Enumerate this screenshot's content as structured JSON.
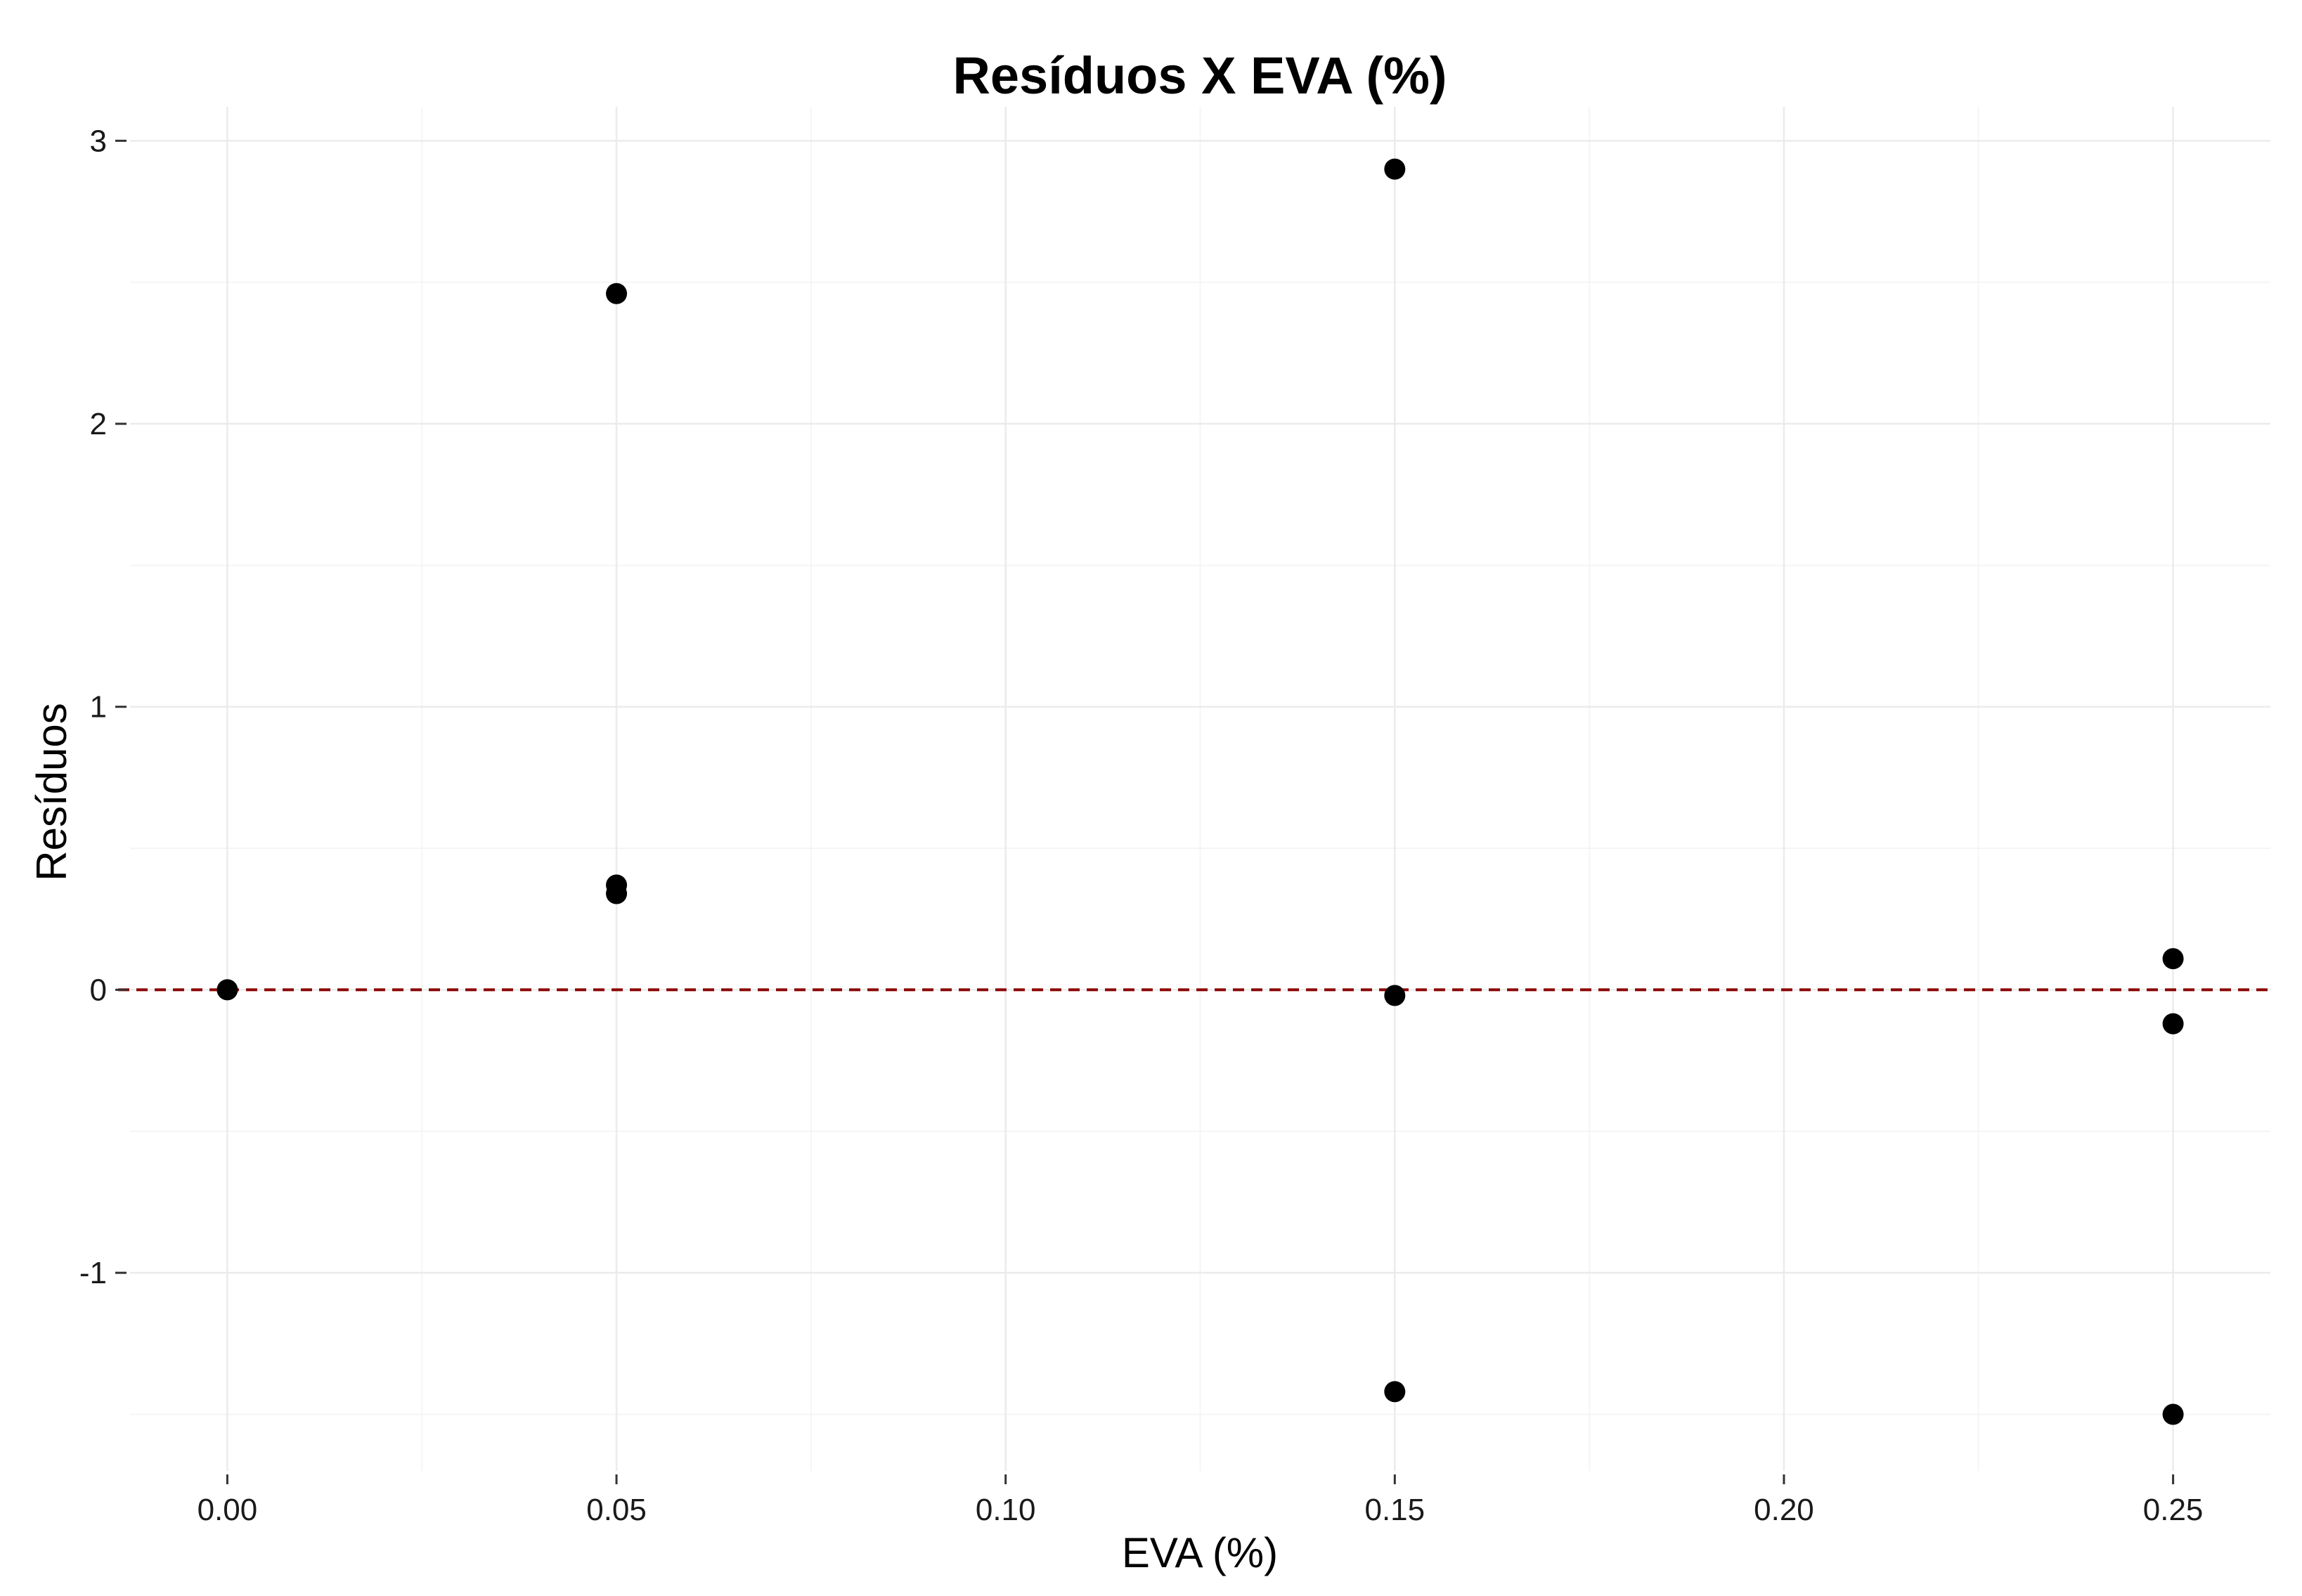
{
  "chart_data": {
    "type": "scatter",
    "title": "Resíduos X EVA (%)",
    "xlabel": "EVA (%)",
    "ylabel": "Resíduos",
    "xlim": [
      -0.0125,
      0.2625
    ],
    "ylim": [
      -1.7,
      3.12
    ],
    "x_ticks": [
      0.0,
      0.05,
      0.1,
      0.15,
      0.2,
      0.25
    ],
    "x_tick_labels": [
      "0.00",
      "0.05",
      "0.10",
      "0.15",
      "0.20",
      "0.25"
    ],
    "y_ticks": [
      -1,
      0,
      1,
      2,
      3
    ],
    "y_tick_labels": [
      "-1",
      "0",
      "1",
      "2",
      "3"
    ],
    "x_minor_grid": [
      0.025,
      0.075,
      0.125,
      0.175,
      0.225
    ],
    "y_minor_grid": [
      -1.5,
      -0.5,
      0.5,
      1.5,
      2.5
    ],
    "grid": true,
    "reference_line": {
      "y": 0,
      "style": "dashed",
      "color": "#8b0000"
    },
    "colors": {
      "point": "#000000",
      "grid": "#ebebeb",
      "minor_grid": "#f5f5f5",
      "reference_line": "#8b0000"
    },
    "points": [
      {
        "x": 0.0,
        "y": 0.0
      },
      {
        "x": 0.05,
        "y": 2.46
      },
      {
        "x": 0.05,
        "y": 0.37
      },
      {
        "x": 0.05,
        "y": 0.34
      },
      {
        "x": 0.15,
        "y": 2.9
      },
      {
        "x": 0.15,
        "y": -0.02
      },
      {
        "x": 0.15,
        "y": -1.42
      },
      {
        "x": 0.25,
        "y": 0.11
      },
      {
        "x": 0.25,
        "y": -0.12
      },
      {
        "x": 0.25,
        "y": -1.5
      }
    ]
  }
}
